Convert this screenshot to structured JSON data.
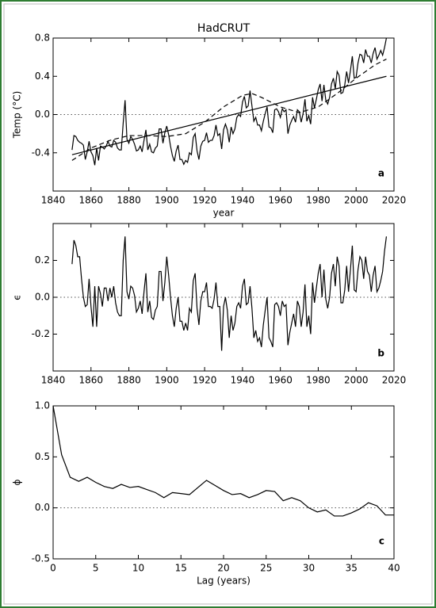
{
  "chart_data": [
    {
      "type": "line",
      "title": "HadCRUT",
      "xlabel": "year",
      "ylabel": "Temp (°C)",
      "panel_label": "a",
      "xlim": [
        1840,
        2020
      ],
      "xticks": [
        1840,
        1860,
        1880,
        1900,
        1920,
        1940,
        1960,
        1980,
        2000,
        2020
      ],
      "ylim": [
        -0.8,
        0.8
      ],
      "yticks": [
        -0.4,
        {
          "value": 0,
          "label": "0.0"
        },
        0.4,
        0.8
      ],
      "reference_line": 0,
      "series": [
        {
          "color": "#000000",
          "dash": "solid",
          "x": [
            1850,
            1851,
            1852,
            1853,
            1854,
            1855,
            1856,
            1857,
            1858,
            1859,
            1860,
            1861,
            1862,
            1863,
            1864,
            1865,
            1866,
            1867,
            1868,
            1869,
            1870,
            1871,
            1872,
            1873,
            1874,
            1875,
            1876,
            1877,
            1878,
            1879,
            1880,
            1881,
            1882,
            1883,
            1884,
            1885,
            1886,
            1887,
            1888,
            1889,
            1890,
            1891,
            1892,
            1893,
            1894,
            1895,
            1896,
            1897,
            1898,
            1899,
            1900,
            1901,
            1902,
            1903,
            1904,
            1905,
            1906,
            1907,
            1908,
            1909,
            1910,
            1911,
            1912,
            1913,
            1914,
            1915,
            1916,
            1917,
            1918,
            1919,
            1920,
            1921,
            1922,
            1923,
            1924,
            1925,
            1926,
            1927,
            1928,
            1929,
            1930,
            1931,
            1932,
            1933,
            1934,
            1935,
            1936,
            1937,
            1938,
            1939,
            1940,
            1941,
            1942,
            1943,
            1944,
            1945,
            1946,
            1947,
            1948,
            1949,
            1950,
            1951,
            1952,
            1953,
            1954,
            1955,
            1956,
            1957,
            1958,
            1959,
            1960,
            1961,
            1962,
            1963,
            1964,
            1965,
            1966,
            1967,
            1968,
            1969,
            1970,
            1971,
            1972,
            1973,
            1974,
            1975,
            1976,
            1977,
            1978,
            1979,
            1980,
            1981,
            1982,
            1983,
            1984,
            1985,
            1986,
            1987,
            1988,
            1989,
            1990,
            1991,
            1992,
            1993,
            1994,
            1995,
            1996,
            1997,
            1998,
            1999,
            2000,
            2001,
            2002,
            2003,
            2004,
            2005,
            2006,
            2007,
            2008,
            2009,
            2010,
            2011,
            2012,
            2013,
            2014,
            2015,
            2016
          ],
          "values": [
            -0.37,
            -0.22,
            -0.23,
            -0.27,
            -0.29,
            -0.3,
            -0.32,
            -0.47,
            -0.39,
            -0.28,
            -0.39,
            -0.43,
            -0.53,
            -0.35,
            -0.48,
            -0.33,
            -0.34,
            -0.36,
            -0.33,
            -0.28,
            -0.33,
            -0.34,
            -0.27,
            -0.29,
            -0.35,
            -0.37,
            -0.37,
            -0.09,
            0.15,
            -0.26,
            -0.3,
            -0.23,
            -0.26,
            -0.31,
            -0.38,
            -0.37,
            -0.33,
            -0.39,
            -0.27,
            -0.16,
            -0.37,
            -0.31,
            -0.39,
            -0.4,
            -0.35,
            -0.33,
            -0.15,
            -0.15,
            -0.3,
            -0.19,
            -0.12,
            -0.21,
            -0.33,
            -0.43,
            -0.49,
            -0.38,
            -0.32,
            -0.47,
            -0.47,
            -0.52,
            -0.48,
            -0.5,
            -0.4,
            -0.42,
            -0.24,
            -0.2,
            -0.38,
            -0.47,
            -0.33,
            -0.28,
            -0.27,
            -0.19,
            -0.29,
            -0.27,
            -0.27,
            -0.22,
            -0.11,
            -0.22,
            -0.2,
            -0.36,
            -0.16,
            -0.1,
            -0.16,
            -0.29,
            -0.13,
            -0.2,
            -0.15,
            -0.03,
            0.0,
            -0.02,
            0.13,
            0.19,
            0.07,
            0.09,
            0.25,
            0.09,
            -0.07,
            -0.03,
            -0.11,
            -0.11,
            -0.17,
            -0.07,
            0.01,
            0.08,
            -0.13,
            -0.14,
            -0.19,
            0.05,
            0.06,
            0.03,
            -0.03,
            0.06,
            0.03,
            0.05,
            -0.2,
            -0.11,
            -0.06,
            -0.02,
            -0.08,
            0.05,
            0.03,
            -0.08,
            0.01,
            0.16,
            -0.07,
            -0.01,
            -0.1,
            0.18,
            0.07,
            0.16,
            0.26,
            0.32,
            0.14,
            0.31,
            0.15,
            0.11,
            0.18,
            0.32,
            0.38,
            0.27,
            0.45,
            0.41,
            0.22,
            0.23,
            0.31,
            0.45,
            0.33,
            0.46,
            0.61,
            0.38,
            0.39,
            0.54,
            0.63,
            0.62,
            0.54,
            0.68,
            0.61,
            0.61,
            0.54,
            0.64,
            0.7,
            0.58,
            0.62,
            0.67,
            0.62,
            0.7,
            0.8
          ]
        },
        {
          "color": "#000000",
          "dash": "solid",
          "x": [
            1850,
            2016
          ],
          "values": [
            -0.42,
            0.4
          ]
        },
        {
          "color": "#000000",
          "dash": "dashed",
          "x": [
            1850,
            1860,
            1870,
            1880,
            1890,
            1900,
            1910,
            1920,
            1930,
            1940,
            1945,
            1950,
            1960,
            1970,
            1980,
            1990,
            2000,
            2010,
            2016
          ],
          "values": [
            -0.48,
            -0.35,
            -0.27,
            -0.22,
            -0.22,
            -0.23,
            -0.2,
            -0.08,
            0.08,
            0.2,
            0.22,
            0.18,
            0.08,
            0.02,
            0.08,
            0.22,
            0.38,
            0.52,
            0.58
          ]
        }
      ]
    },
    {
      "type": "line",
      "ylabel": "ϵ",
      "panel_label": "b",
      "xlim": [
        1840,
        2020
      ],
      "xticks": [
        1840,
        1860,
        1880,
        1900,
        1920,
        1940,
        1960,
        1980,
        2000,
        2020
      ],
      "ylim": [
        -0.4,
        0.4
      ],
      "yticks": [
        -0.2,
        {
          "value": 0,
          "label": "0.0"
        },
        0.2
      ],
      "reference_line": 0,
      "series": [
        {
          "color": "#000000",
          "dash": "solid",
          "x": [
            1850,
            1851,
            1852,
            1853,
            1854,
            1855,
            1856,
            1857,
            1858,
            1859,
            1860,
            1861,
            1862,
            1863,
            1864,
            1865,
            1866,
            1867,
            1868,
            1869,
            1870,
            1871,
            1872,
            1873,
            1874,
            1875,
            1876,
            1877,
            1878,
            1879,
            1880,
            1881,
            1882,
            1883,
            1884,
            1885,
            1886,
            1887,
            1888,
            1889,
            1890,
            1891,
            1892,
            1893,
            1894,
            1895,
            1896,
            1897,
            1898,
            1899,
            1900,
            1901,
            1902,
            1903,
            1904,
            1905,
            1906,
            1907,
            1908,
            1909,
            1910,
            1911,
            1912,
            1913,
            1914,
            1915,
            1916,
            1917,
            1918,
            1919,
            1920,
            1921,
            1922,
            1923,
            1924,
            1925,
            1926,
            1927,
            1928,
            1929,
            1930,
            1931,
            1932,
            1933,
            1934,
            1935,
            1936,
            1937,
            1938,
            1939,
            1940,
            1941,
            1942,
            1943,
            1944,
            1945,
            1946,
            1947,
            1948,
            1949,
            1950,
            1951,
            1952,
            1953,
            1954,
            1955,
            1956,
            1957,
            1958,
            1959,
            1960,
            1961,
            1962,
            1963,
            1964,
            1965,
            1966,
            1967,
            1968,
            1969,
            1970,
            1971,
            1972,
            1973,
            1974,
            1975,
            1976,
            1977,
            1978,
            1979,
            1980,
            1981,
            1982,
            1983,
            1984,
            1985,
            1986,
            1987,
            1988,
            1989,
            1990,
            1991,
            1992,
            1993,
            1994,
            1995,
            1996,
            1997,
            1998,
            1999,
            2000,
            2001,
            2002,
            2003,
            2004,
            2005,
            2006,
            2007,
            2008,
            2009,
            2010,
            2011,
            2012,
            2013,
            2014,
            2015,
            2016
          ],
          "values": [
            0.18,
            0.31,
            0.28,
            0.22,
            0.22,
            0.1,
            0.0,
            -0.05,
            -0.04,
            0.1,
            -0.05,
            -0.16,
            0.06,
            -0.16,
            0.06,
            0.02,
            -0.05,
            0.05,
            0.05,
            -0.02,
            0.05,
            0.0,
            0.06,
            -0.03,
            -0.08,
            -0.1,
            -0.1,
            0.2,
            0.33,
            0.03,
            -0.01,
            0.06,
            0.05,
            0.01,
            -0.08,
            -0.06,
            -0.02,
            -0.09,
            0.03,
            0.13,
            -0.08,
            -0.02,
            -0.11,
            -0.12,
            -0.07,
            -0.05,
            0.14,
            0.14,
            -0.02,
            0.08,
            0.22,
            0.12,
            0.0,
            -0.1,
            -0.16,
            -0.06,
            0.0,
            -0.13,
            -0.13,
            -0.18,
            -0.14,
            -0.18,
            -0.06,
            -0.08,
            0.09,
            0.13,
            -0.06,
            -0.15,
            -0.02,
            0.03,
            0.03,
            0.08,
            -0.05,
            -0.05,
            -0.06,
            -0.01,
            0.08,
            -0.05,
            -0.05,
            -0.29,
            -0.05,
            0.0,
            -0.07,
            -0.22,
            -0.1,
            -0.18,
            -0.14,
            -0.05,
            -0.03,
            -0.06,
            0.06,
            0.1,
            -0.04,
            -0.03,
            0.06,
            -0.06,
            -0.22,
            -0.18,
            -0.24,
            -0.22,
            -0.27,
            -0.15,
            -0.07,
            0.0,
            -0.22,
            -0.24,
            -0.27,
            -0.04,
            -0.03,
            -0.05,
            -0.1,
            -0.02,
            -0.05,
            -0.04,
            -0.26,
            -0.19,
            -0.14,
            -0.09,
            -0.16,
            -0.02,
            -0.05,
            -0.16,
            -0.08,
            0.07,
            -0.16,
            -0.1,
            -0.2,
            0.08,
            -0.03,
            0.05,
            0.13,
            0.18,
            0.0,
            0.15,
            -0.01,
            -0.06,
            0.0,
            0.13,
            0.18,
            0.06,
            0.22,
            0.17,
            -0.03,
            -0.03,
            0.04,
            0.17,
            0.03,
            0.15,
            0.28,
            0.04,
            0.03,
            0.15,
            0.22,
            0.2,
            0.1,
            0.22,
            0.14,
            0.12,
            0.03,
            0.12,
            0.17,
            0.03,
            0.05,
            0.09,
            0.14,
            0.25,
            0.33
          ]
        }
      ]
    },
    {
      "type": "line",
      "xlabel": "Lag (years)",
      "ylabel": "ϕ",
      "panel_label": "c",
      "xlim": [
        0,
        40
      ],
      "xticks": [
        0,
        5,
        10,
        15,
        20,
        25,
        30,
        35,
        40
      ],
      "ylim": [
        -0.5,
        1.0
      ],
      "yticks": [
        -0.5,
        {
          "value": 0,
          "label": "0.0"
        },
        0.5,
        {
          "value": 1,
          "label": "1.0"
        }
      ],
      "reference_line": 0,
      "series": [
        {
          "color": "#000000",
          "dash": "solid",
          "x": [
            0,
            1,
            2,
            3,
            4,
            5,
            6,
            7,
            8,
            9,
            10,
            11,
            12,
            13,
            14,
            15,
            16,
            17,
            18,
            19,
            20,
            21,
            22,
            23,
            24,
            25,
            26,
            27,
            28,
            29,
            30,
            31,
            32,
            33,
            34,
            35,
            36,
            37,
            38,
            39,
            40
          ],
          "values": [
            1.0,
            0.52,
            0.3,
            0.26,
            0.3,
            0.25,
            0.21,
            0.19,
            0.23,
            0.2,
            0.21,
            0.18,
            0.15,
            0.1,
            0.15,
            0.14,
            0.13,
            0.2,
            0.27,
            0.22,
            0.17,
            0.13,
            0.14,
            0.1,
            0.13,
            0.17,
            0.16,
            0.07,
            0.1,
            0.07,
            0.0,
            -0.04,
            -0.02,
            -0.08,
            -0.08,
            -0.05,
            -0.01,
            0.05,
            0.02,
            -0.07,
            -0.07
          ]
        }
      ]
    }
  ]
}
